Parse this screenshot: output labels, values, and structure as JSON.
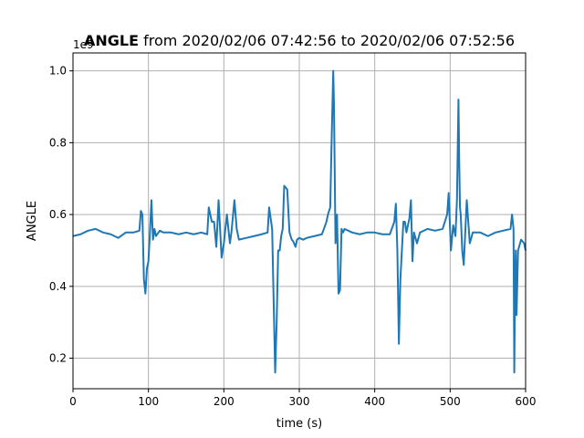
{
  "chart_data": {
    "type": "line",
    "title": {
      "bold": "ANGLE",
      "rest": " from 2020/02/06 07:42:56 to 2020/02/06 07:52:56"
    },
    "xlabel": "time (s)",
    "ylabel": "ANGLE",
    "offset_label": "1e9",
    "xlim": [
      0,
      600
    ],
    "ylim": [
      0.115,
      1.05
    ],
    "x_ticks": [
      0,
      100,
      200,
      300,
      400,
      500,
      600
    ],
    "y_ticks": [
      0.2,
      0.4,
      0.6,
      0.8,
      1.0
    ],
    "x_tick_labels": [
      "0",
      "100",
      "200",
      "300",
      "400",
      "500",
      "600"
    ],
    "y_tick_labels": [
      "0.2",
      "0.4",
      "0.6",
      "0.8",
      "1.0"
    ],
    "grid": true,
    "line_color": "#1f77b4",
    "grid_color": "#b0b0b0",
    "series": [
      {
        "x": [
          0,
          10,
          20,
          30,
          40,
          50,
          60,
          70,
          80,
          88,
          90,
          92,
          94,
          96,
          98,
          100,
          102,
          104,
          106,
          108,
          110,
          115,
          120,
          130,
          140,
          150,
          160,
          170,
          178,
          180,
          184,
          187,
          190,
          193,
          197,
          200,
          204,
          208,
          210,
          214,
          217,
          220,
          230,
          240,
          250,
          258,
          260,
          264,
          266,
          268,
          270,
          272,
          274,
          276,
          278,
          280,
          284,
          287,
          290,
          292,
          295,
          297,
          300,
          305,
          310,
          320,
          330,
          336,
          338,
          341,
          343,
          345,
          346,
          348,
          350,
          352,
          354,
          356,
          358,
          360,
          365,
          370,
          380,
          390,
          400,
          410,
          420,
          426,
          428,
          430,
          432,
          434,
          436,
          438,
          440,
          442,
          446,
          448,
          450,
          452,
          456,
          460,
          470,
          480,
          490,
          496,
          498,
          501,
          504,
          507,
          509,
          511,
          512,
          513,
          514,
          516,
          518,
          520,
          522,
          526,
          530,
          540,
          550,
          560,
          570,
          580,
          582,
          584,
          585,
          586,
          587,
          588,
          590,
          594,
          598,
          600
        ],
        "y": [
          0.54,
          0.545,
          0.555,
          0.56,
          0.55,
          0.545,
          0.535,
          0.55,
          0.55,
          0.555,
          0.61,
          0.6,
          0.42,
          0.38,
          0.45,
          0.47,
          0.55,
          0.64,
          0.53,
          0.56,
          0.54,
          0.555,
          0.55,
          0.55,
          0.545,
          0.55,
          0.545,
          0.55,
          0.545,
          0.62,
          0.58,
          0.58,
          0.51,
          0.64,
          0.48,
          0.52,
          0.6,
          0.52,
          0.55,
          0.64,
          0.56,
          0.53,
          0.535,
          0.54,
          0.545,
          0.55,
          0.62,
          0.56,
          0.36,
          0.16,
          0.3,
          0.5,
          0.5,
          0.54,
          0.56,
          0.68,
          0.67,
          0.55,
          0.53,
          0.525,
          0.51,
          0.53,
          0.535,
          0.53,
          0.535,
          0.54,
          0.545,
          0.58,
          0.6,
          0.62,
          0.82,
          1.0,
          0.9,
          0.52,
          0.6,
          0.38,
          0.39,
          0.56,
          0.55,
          0.56,
          0.555,
          0.55,
          0.545,
          0.55,
          0.55,
          0.545,
          0.545,
          0.58,
          0.63,
          0.5,
          0.24,
          0.42,
          0.5,
          0.58,
          0.58,
          0.55,
          0.59,
          0.64,
          0.47,
          0.55,
          0.52,
          0.55,
          0.56,
          0.555,
          0.56,
          0.6,
          0.66,
          0.5,
          0.57,
          0.54,
          0.64,
          0.92,
          0.75,
          0.62,
          0.6,
          0.5,
          0.46,
          0.55,
          0.64,
          0.52,
          0.55,
          0.55,
          0.54,
          0.55,
          0.555,
          0.56,
          0.6,
          0.56,
          0.16,
          0.42,
          0.5,
          0.32,
          0.5,
          0.53,
          0.52,
          0.5
        ]
      }
    ]
  }
}
